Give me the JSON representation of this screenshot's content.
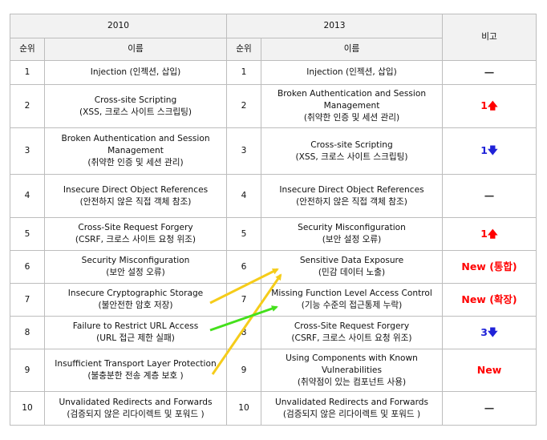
{
  "header": {
    "year_old": "2010",
    "year_new": "2013",
    "remarks": "비고",
    "rank": "순위",
    "name": "이름"
  },
  "rows": [
    {
      "rank_old": "1",
      "name_old": {
        "en": "Injection (인젝션, 삽입)",
        "ko": ""
      },
      "rank_new": "1",
      "name_new": {
        "en": "Injection (인젝션, 삽입)",
        "ko": ""
      },
      "note": {
        "text": "—",
        "arrow": "",
        "color": "#333333"
      }
    },
    {
      "rank_old": "2",
      "name_old": {
        "en": "Cross-site Scripting",
        "ko": "(XSS, 크로스 사이트 스크립팅)"
      },
      "rank_new": "2",
      "name_new": {
        "en": "Broken Authentication and Session Management",
        "ko": "(취약한 인증 및 세션 관리)"
      },
      "note": {
        "text": "1",
        "arrow": "🡅",
        "color": "#ff0000"
      }
    },
    {
      "rank_old": "3",
      "name_old": {
        "en": "Broken Authentication and Session Management",
        "ko": "(취약한 인증 및 세션 관리)"
      },
      "rank_new": "3",
      "name_new": {
        "en": "Cross-site Scripting",
        "ko": "(XSS, 크로스 사이트 스크립팅)"
      },
      "note": {
        "text": "1",
        "arrow": "🡇",
        "color": "#1f22d8"
      }
    },
    {
      "rank_old": "4",
      "name_old": {
        "en": "Insecure Direct Object References",
        "ko": "(안전하지 않은 직접 객체 참조)"
      },
      "rank_new": "4",
      "name_new": {
        "en": "Insecure Direct Object References",
        "ko": "(안전하지 않은 직접 객체 참조)"
      },
      "note": {
        "text": "—",
        "arrow": "",
        "color": "#333333"
      }
    },
    {
      "rank_old": "5",
      "name_old": {
        "en": "Cross-Site Request Forgery",
        "ko": "(CSRF, 크로스 사이트 요청 위조)"
      },
      "rank_new": "5",
      "name_new": {
        "en": "Security Misconfiguration",
        "ko": "(보안 설정 오류)"
      },
      "note": {
        "text": "1",
        "arrow": "🡅",
        "color": "#ff0000"
      }
    },
    {
      "rank_old": "6",
      "name_old": {
        "en": "Security Misconfiguration",
        "ko": "(보안 설정 오류)"
      },
      "rank_new": "6",
      "name_new": {
        "en": "Sensitive Data Exposure",
        "ko": "(민감 데이터 노출)"
      },
      "note": {
        "text": "New (통합)",
        "arrow": "",
        "color": "#ff0000"
      }
    },
    {
      "rank_old": "7",
      "name_old": {
        "en": "Insecure Cryptographic Storage",
        "ko": "(불안전한 암호 저장)"
      },
      "rank_new": "7",
      "name_new": {
        "en": "Missing Function Level Access Control",
        "ko": "(기능 수준의 접근통제 누락)"
      },
      "note": {
        "text": "New (확장)",
        "arrow": "",
        "color": "#ff0000"
      }
    },
    {
      "rank_old": "8",
      "name_old": {
        "en": "Failure to Restrict URL Access",
        "ko": "(URL 접근 제한 실패)"
      },
      "rank_new": "8",
      "name_new": {
        "en": "Cross-Site Request Forgery",
        "ko": "(CSRF, 크로스 사이트 요청 위조)"
      },
      "note": {
        "text": "3",
        "arrow": "🡇",
        "color": "#1f22d8"
      }
    },
    {
      "rank_old": "9",
      "name_old": {
        "en": "Insufficient Transport Layer Protection",
        "ko": "(불충분한 전송 계층 보호 )"
      },
      "rank_new": "9",
      "name_new": {
        "en": "Using Components with Known Vulnerabilities",
        "ko": "(취약점이 있는 컴포넌트 사용)"
      },
      "note": {
        "text": "New",
        "arrow": "",
        "color": "#ff0000"
      }
    },
    {
      "rank_old": "10",
      "name_old": {
        "en": "Unvalidated Redirects and Forwards",
        "ko": "(검증되지 않은 리다이렉트 및 포워드 )"
      },
      "rank_new": "10",
      "name_new": {
        "en": "Unvalidated Redirects and Forwards",
        "ko": "(검증되지 않은 리다이렉트 및 포워드 )"
      },
      "note": {
        "text": "—",
        "arrow": "",
        "color": "#333333"
      }
    }
  ],
  "arrow_colors": {
    "yellow": "#f5cc1a",
    "green": "#44e01c"
  }
}
